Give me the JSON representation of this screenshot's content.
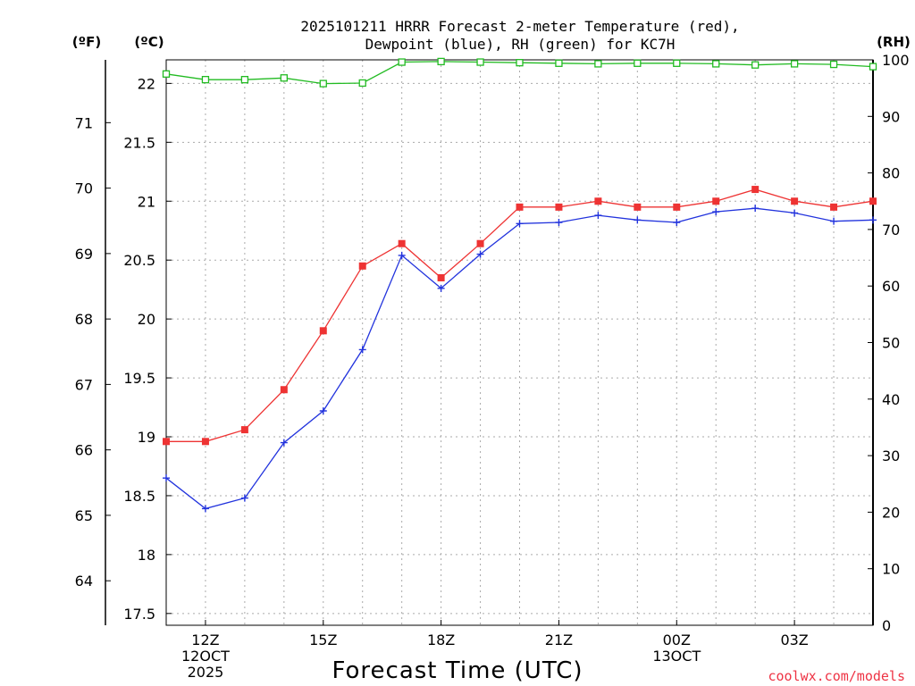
{
  "chart_data": {
    "type": "line",
    "title_line1": "2025101211 HRRR Forecast 2-meter Temperature (red),",
    "title_line2": "Dewpoint (blue), RH (green) for KC7H",
    "xlabel": "Forecast Time (UTC)",
    "unit_f": "(ºF)",
    "unit_c": "(ºC)",
    "unit_rh": "(RH)",
    "watermark": "coolwx.com/models",
    "x_hours": [
      0,
      1,
      2,
      3,
      4,
      5,
      6,
      7,
      8,
      9,
      10,
      11,
      12,
      13,
      14,
      15,
      16,
      17,
      18
    ],
    "x_ticks": [
      {
        "hour": 1,
        "l1": "12Z",
        "l2": "12OCT",
        "l3": "2025"
      },
      {
        "hour": 4,
        "l1": "15Z",
        "l2": "",
        "l3": ""
      },
      {
        "hour": 7,
        "l1": "18Z",
        "l2": "",
        "l3": ""
      },
      {
        "hour": 10,
        "l1": "21Z",
        "l2": "",
        "l3": ""
      },
      {
        "hour": 13,
        "l1": "00Z",
        "l2": "13OCT",
        "l3": ""
      },
      {
        "hour": 16,
        "l1": "03Z",
        "l2": "",
        "l3": ""
      }
    ],
    "xlim": [
      0,
      18
    ],
    "ylim_c": [
      17.4,
      22.2
    ],
    "ylim_rh": [
      0,
      100
    ],
    "c_ticks": [
      "17.5",
      "18",
      "18.5",
      "19",
      "19.5",
      "20",
      "20.5",
      "21",
      "21.5",
      "22"
    ],
    "f_ticks": [
      "64",
      "65",
      "66",
      "67",
      "68",
      "69",
      "70",
      "71"
    ],
    "rh_ticks": [
      "0",
      "10",
      "20",
      "30",
      "40",
      "50",
      "60",
      "70",
      "80",
      "90",
      "100"
    ],
    "series": [
      {
        "name": "Temperature",
        "color": "#ee3333",
        "marker": "square-filled",
        "values": [
          18.96,
          18.96,
          19.06,
          19.4,
          19.9,
          20.45,
          20.64,
          20.35,
          20.64,
          20.95,
          20.95,
          21.0,
          20.95,
          20.95,
          21.0,
          21.1,
          21.0,
          20.95,
          21.0
        ]
      },
      {
        "name": "Dewpoint",
        "color": "#2233dd",
        "marker": "plus",
        "values": [
          18.65,
          18.39,
          18.48,
          18.95,
          19.22,
          19.74,
          20.54,
          20.26,
          20.55,
          20.81,
          20.82,
          20.88,
          20.84,
          20.82,
          20.91,
          20.94,
          20.9,
          20.83,
          20.84
        ]
      },
      {
        "name": "RH",
        "color": "#22bb22",
        "marker": "square-open",
        "values": [
          97.5,
          96.5,
          96.5,
          96.8,
          95.8,
          95.9,
          99.6,
          99.7,
          99.6,
          99.5,
          99.4,
          99.3,
          99.4,
          99.4,
          99.3,
          99.1,
          99.3,
          99.2,
          98.8
        ]
      }
    ]
  }
}
